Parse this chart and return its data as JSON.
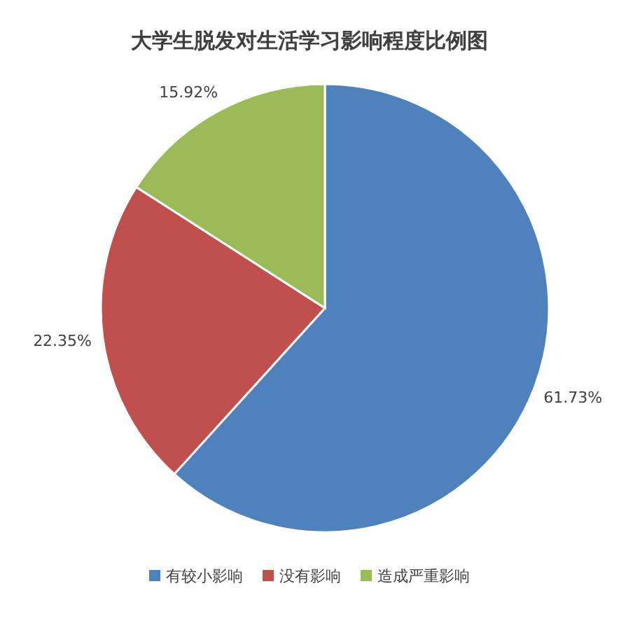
{
  "chart_data": {
    "type": "pie",
    "title": "大学生脱发对生活学习影响程度比例图",
    "categories": [
      "有较小影响",
      "没有影响",
      "造成严重影响"
    ],
    "values": [
      61.73,
      22.35,
      15.92
    ],
    "colors": [
      "#4f81bd",
      "#c0504d",
      "#9bbb59"
    ],
    "value_labels": [
      "61.73%",
      "22.35%",
      "15.92%"
    ],
    "legend": "bottom"
  }
}
